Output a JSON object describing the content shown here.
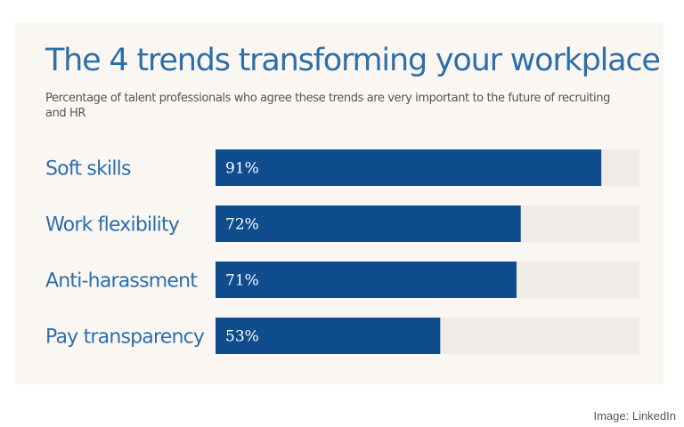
{
  "chart_data": {
    "type": "bar",
    "orientation": "horizontal",
    "title": "The 4 trends transforming your workplace",
    "subtitle": "Percentage of talent professionals who agree these trends are very important to the future of recruiting and HR",
    "categories": [
      "Soft skills",
      "Work flexibility",
      "Anti-harassment",
      "Pay transparency"
    ],
    "values": [
      91,
      72,
      71,
      53
    ],
    "value_labels": [
      "91%",
      "72%",
      "71%",
      "53%"
    ],
    "xlim": [
      0,
      100
    ],
    "grid": false,
    "legend": "none",
    "colors": {
      "bar": "#0e4c8e",
      "track": "#efebe6",
      "text": "#2e6ea9",
      "background": "#faf7f2"
    }
  },
  "credit": "Image: LinkedIn"
}
